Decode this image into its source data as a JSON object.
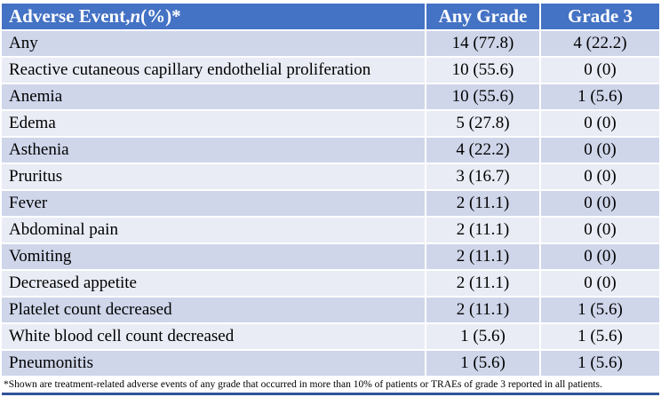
{
  "colors": {
    "header_bg": "#4472c4",
    "header_text": "#ffffff",
    "band_dark": "#cfd6ea",
    "band_light": "#e9ecf5",
    "bottom_line": "#2f5496"
  },
  "table": {
    "header": {
      "col1_prefix": "Adverse Event, ",
      "col1_italic": "n",
      "col1_suffix": " (%)*",
      "col2": "Any Grade",
      "col3": "Grade 3"
    },
    "rows": [
      {
        "name": "Any",
        "any_grade": "14 (77.8)",
        "grade_3": "4 (22.2)"
      },
      {
        "name": "Reactive cutaneous capillary endothelial proliferation",
        "any_grade": "10 (55.6)",
        "grade_3": "0 (0)"
      },
      {
        "name": "Anemia",
        "any_grade": "10 (55.6)",
        "grade_3": "1 (5.6)"
      },
      {
        "name": "Edema",
        "any_grade": "5 (27.8)",
        "grade_3": "0 (0)"
      },
      {
        "name": "Asthenia",
        "any_grade": "4 (22.2)",
        "grade_3": "0 (0)"
      },
      {
        "name": "Pruritus",
        "any_grade": "3 (16.7)",
        "grade_3": "0 (0)"
      },
      {
        "name": "Fever",
        "any_grade": "2 (11.1)",
        "grade_3": "0 (0)"
      },
      {
        "name": "Abdominal pain",
        "any_grade": "2 (11.1)",
        "grade_3": "0 (0)"
      },
      {
        "name": "Vomiting",
        "any_grade": "2 (11.1)",
        "grade_3": "0 (0)"
      },
      {
        "name": "Decreased appetite",
        "any_grade": "2 (11.1)",
        "grade_3": "0 (0)"
      },
      {
        "name": "Platelet count decreased",
        "any_grade": "2 (11.1)",
        "grade_3": "1 (5.6)"
      },
      {
        "name": "White blood cell count decreased",
        "any_grade": "1 (5.6)",
        "grade_3": "1 (5.6)"
      },
      {
        "name": "Pneumonitis",
        "any_grade": "1 (5.6)",
        "grade_3": "1 (5.6)"
      }
    ]
  },
  "footnote": "*Shown are treatment-related adverse events of any grade that occurred in more than 10% of patients or TRAEs of grade 3 reported in all patients."
}
